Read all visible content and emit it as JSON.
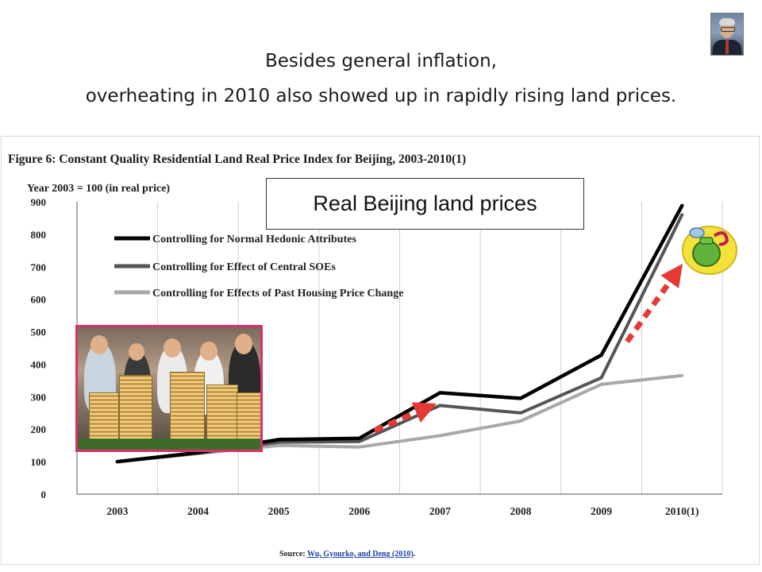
{
  "slide": {
    "title_line1": "Besides general inflation,",
    "title_line2": "overheating in 2010 also showed up in rapidly rising land prices.",
    "callout": "Real Beijing land prices"
  },
  "chart_data": {
    "type": "line",
    "title": "Figure 6:  Constant Quality Residential Land Real Price Index for Beijing, 2003-2010(1)",
    "subtitle": "Year 2003 = 100 (in real price)",
    "categories": [
      "2003",
      "2004",
      "2005",
      "2006",
      "2007",
      "2008",
      "2009",
      "2010(1)"
    ],
    "ylim": [
      0,
      900
    ],
    "yticks": [
      0,
      100,
      200,
      300,
      400,
      500,
      600,
      700,
      800,
      900
    ],
    "grid": "vertical",
    "legend": "top-left",
    "source_prefix": "Source: ",
    "source_link": "Wu, Gyourko, and Deng (2010)",
    "source_suffix": ".",
    "series": [
      {
        "name": "Controlling for Normal Hedonic Attributes",
        "color": "#000000",
        "values": [
          100,
          128,
          168,
          172,
          312,
          295,
          428,
          888
        ]
      },
      {
        "name": "Controlling for Effect of Central SOEs",
        "color": "#555555",
        "values": [
          100,
          126,
          160,
          162,
          273,
          250,
          358,
          860
        ]
      },
      {
        "name": "Controlling for Effects of Past Housing Price Change",
        "color": "#a8a8a8",
        "values": [
          100,
          125,
          150,
          145,
          180,
          225,
          338,
          365
        ]
      }
    ]
  },
  "annotation_color": "#e53935"
}
